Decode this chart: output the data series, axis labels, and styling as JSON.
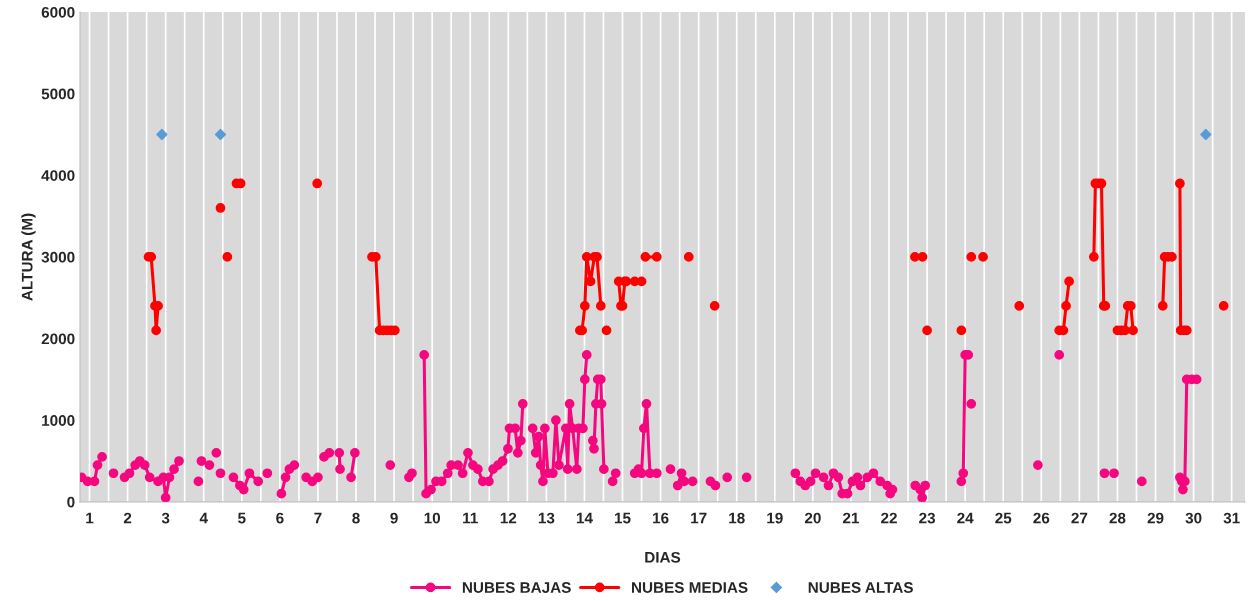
{
  "chart_data": {
    "type": "line",
    "xlabel": "DIAS",
    "ylabel": "ALTURA (M)",
    "xlim": [
      0.75,
      31.35
    ],
    "ylim": [
      0,
      6000
    ],
    "xticks": [
      1,
      {
        "value": 1.5,
        "label": null
      },
      2,
      {
        "value": 2.5,
        "label": null
      },
      3,
      {
        "value": 3.5,
        "label": null
      },
      4,
      {
        "value": 4.5,
        "label": null
      },
      5,
      {
        "value": 5.5,
        "label": null
      },
      6,
      {
        "value": 6.5,
        "label": null
      },
      7,
      {
        "value": 7.5,
        "label": null
      },
      8,
      {
        "value": 8.5,
        "label": null
      },
      9,
      {
        "value": 9.5,
        "label": null
      },
      10,
      {
        "value": 10.5,
        "label": null
      },
      11,
      {
        "value": 11.5,
        "label": null
      },
      12,
      {
        "value": 12.5,
        "label": null
      },
      13,
      {
        "value": 13.5,
        "label": null
      },
      14,
      {
        "value": 14.5,
        "label": null
      },
      15,
      {
        "value": 15.5,
        "label": null
      },
      16,
      {
        "value": 16.5,
        "label": null
      },
      17,
      {
        "value": 17.5,
        "label": null
      },
      18,
      {
        "value": 18.5,
        "label": null
      },
      19,
      {
        "value": 19.5,
        "label": null
      },
      20,
      {
        "value": 20.5,
        "label": null
      },
      21,
      {
        "value": 21.5,
        "label": null
      },
      22,
      {
        "value": 22.5,
        "label": null
      },
      23,
      {
        "value": 23.5,
        "label": null
      },
      24,
      {
        "value": 24.5,
        "label": null
      },
      25,
      {
        "value": 25.5,
        "label": null
      },
      26,
      {
        "value": 26.5,
        "label": null
      },
      27,
      {
        "value": 27.5,
        "label": null
      },
      28,
      {
        "value": 28.5,
        "label": null
      },
      29,
      {
        "value": 29.5,
        "label": null
      },
      30,
      {
        "value": 30.5,
        "label": null
      },
      31
    ],
    "yticks": [
      0,
      1000,
      2000,
      3000,
      4000,
      5000,
      6000
    ],
    "grid": "x",
    "legend": "bottom",
    "line_style": "solid",
    "series": [
      {
        "name": "NUBES BAJAS",
        "color": "#f5077f",
        "marker": "circle",
        "x": [
          0.79,
          0.95,
          1.13,
          1.21,
          1.33,
          1.5,
          1.63,
          1.8,
          1.92,
          2.05,
          2.2,
          2.32,
          2.45,
          2.58,
          2.8,
          2.94,
          3.0,
          3.1,
          3.22,
          3.35,
          3.6,
          3.86,
          3.9,
          3.94,
          4.05,
          4.15,
          4.22,
          4.33,
          4.4,
          4.44,
          4.6,
          4.78,
          4.95,
          5.05,
          5.2,
          5.43,
          5.55,
          5.67,
          5.85,
          6.04,
          6.15,
          6.25,
          6.38,
          6.55,
          6.69,
          6.85,
          7.0,
          7.08,
          7.16,
          7.3,
          7.4,
          7.56,
          7.58,
          7.7,
          7.87,
          7.97,
          8.4,
          8.9,
          9.2,
          9.39,
          9.47,
          9.6,
          9.79,
          9.84,
          9.97,
          10.1,
          10.25,
          10.41,
          10.5,
          10.68,
          10.8,
          10.94,
          11.07,
          11.2,
          11.33,
          11.49,
          11.6,
          11.73,
          11.85,
          11.99,
          12.03,
          12.18,
          12.25,
          12.33,
          12.38,
          12.5,
          12.64,
          12.72,
          12.8,
          12.85,
          12.91,
          12.96,
          13.04,
          13.17,
          13.25,
          13.33,
          13.51,
          13.56,
          13.61,
          13.69,
          13.8,
          13.85,
          13.96,
          14.01,
          14.06,
          14.14,
          14.22,
          14.25,
          14.3,
          14.35,
          14.43,
          14.45,
          14.51,
          14.6,
          14.74,
          14.82,
          15.1,
          15.32,
          15.42,
          15.5,
          15.56,
          15.63,
          15.72,
          15.9,
          16.1,
          16.26,
          16.35,
          16.45,
          16.55,
          16.58,
          16.62,
          16.84,
          17.1,
          17.31,
          17.44,
          17.6,
          17.75,
          18.0,
          18.26,
          19.0,
          19.54,
          19.67,
          19.8,
          19.94,
          20.07,
          20.28,
          20.41,
          20.54,
          20.67,
          20.77,
          20.91,
          21.04,
          21.17,
          21.25,
          21.43,
          21.59,
          21.77,
          21.95,
          22.03,
          22.09,
          22.4,
          22.69,
          22.82,
          22.87,
          22.95,
          23.5,
          23.9,
          23.95,
          24.0,
          24.08,
          24.12,
          24.16,
          25.0,
          25.91,
          26.2,
          26.47,
          27.0,
          27.66,
          27.8,
          27.91,
          28.3,
          28.64,
          29.2,
          29.64,
          29.69,
          29.72,
          29.77,
          29.82,
          29.95,
          30.08
        ],
        "values": [
          300,
          250,
          250,
          450,
          550,
          null,
          350,
          null,
          300,
          350,
          450,
          500,
          450,
          300,
          250,
          300,
          50,
          300,
          400,
          500,
          null,
          250,
          null,
          500,
          null,
          450,
          null,
          600,
          null,
          350,
          null,
          300,
          200,
          150,
          350,
          250,
          null,
          350,
          null,
          100,
          300,
          400,
          450,
          null,
          300,
          250,
          300,
          null,
          550,
          600,
          null,
          600,
          400,
          null,
          300,
          600,
          null,
          450,
          null,
          300,
          350,
          null,
          1800,
          100,
          150,
          250,
          250,
          350,
          450,
          450,
          350,
          600,
          450,
          400,
          250,
          250,
          400,
          450,
          500,
          650,
          900,
          900,
          600,
          750,
          1200,
          null,
          900,
          600,
          800,
          450,
          250,
          900,
          350,
          350,
          1000,
          450,
          900,
          400,
          1200,
          900,
          400,
          900,
          900,
          1500,
          1800,
          null,
          750,
          650,
          1200,
          1500,
          1500,
          1200,
          400,
          null,
          250,
          350,
          null,
          350,
          400,
          350,
          900,
          1200,
          350,
          350,
          null,
          400,
          null,
          200,
          350,
          null,
          250,
          250,
          null,
          250,
          200,
          null,
          300,
          null,
          300,
          null,
          350,
          250,
          200,
          250,
          350,
          300,
          200,
          350,
          300,
          100,
          100,
          250,
          300,
          200,
          300,
          350,
          250,
          200,
          100,
          150,
          null,
          200,
          150,
          50,
          200,
          null,
          250,
          350,
          1800,
          1800,
          null,
          1200,
          null,
          450,
          null,
          1800,
          null,
          350,
          null,
          350,
          null,
          250,
          null,
          300,
          250,
          150,
          250,
          1500,
          1500,
          1500
        ]
      },
      {
        "name": "NUBES MEDIAS",
        "color": "#ff0000",
        "marker": "circle",
        "x": [
          2.55,
          2.62,
          2.72,
          2.75,
          2.8,
          3.5,
          4.44,
          4.52,
          4.62,
          4.75,
          4.86,
          4.97,
          6.0,
          6.98,
          7.5,
          8.42,
          8.52,
          8.62,
          8.72,
          8.82,
          8.92,
          9.02,
          11.0,
          13.88,
          13.94,
          14.01,
          14.06,
          14.16,
          14.26,
          14.33,
          14.43,
          14.5,
          14.58,
          14.75,
          14.9,
          14.96,
          15.0,
          15.06,
          15.1,
          15.2,
          15.32,
          15.4,
          15.5,
          15.55,
          15.6,
          15.9,
          16.3,
          16.74,
          17.0,
          17.42,
          20.0,
          22.68,
          22.88,
          22.93,
          23.0,
          23.5,
          23.9,
          24.0,
          24.16,
          24.3,
          24.47,
          25.0,
          25.42,
          26.0,
          26.47,
          26.58,
          26.65,
          26.73,
          27.0,
          27.38,
          27.42,
          27.5,
          27.58,
          27.64,
          27.68,
          27.8,
          28.0,
          28.1,
          28.2,
          28.27,
          28.35,
          28.41,
          28.8,
          29.19,
          29.24,
          29.33,
          29.43,
          29.55,
          29.64,
          29.66,
          29.75,
          29.82,
          30.3,
          30.79
        ],
        "values": [
          3000,
          3000,
          2400,
          2100,
          2400,
          null,
          3600,
          null,
          3000,
          null,
          3900,
          3900,
          null,
          3900,
          null,
          3000,
          3000,
          2100,
          2100,
          2100,
          2100,
          2100,
          null,
          2100,
          2100,
          2400,
          3000,
          2700,
          3000,
          3000,
          2400,
          null,
          2100,
          null,
          2700,
          2400,
          2400,
          2700,
          2700,
          null,
          2700,
          null,
          2700,
          null,
          3000,
          3000,
          null,
          3000,
          null,
          2400,
          null,
          3000,
          3000,
          null,
          2100,
          null,
          2100,
          null,
          3000,
          null,
          3000,
          null,
          2400,
          null,
          2100,
          2100,
          2400,
          2700,
          null,
          3000,
          3900,
          3900,
          3900,
          2400,
          2400,
          null,
          2100,
          2100,
          2100,
          2400,
          2400,
          2100,
          null,
          2400,
          3000,
          3000,
          3000,
          null,
          3900,
          2100,
          2100,
          2100,
          null,
          2400
        ]
      },
      {
        "name": "NUBES ALTAS",
        "color": "#5b9bd5",
        "marker": "diamond",
        "type": "scatter",
        "x": [
          2.9,
          4.44,
          30.32
        ],
        "values": [
          4500,
          4500,
          4500
        ]
      }
    ]
  }
}
